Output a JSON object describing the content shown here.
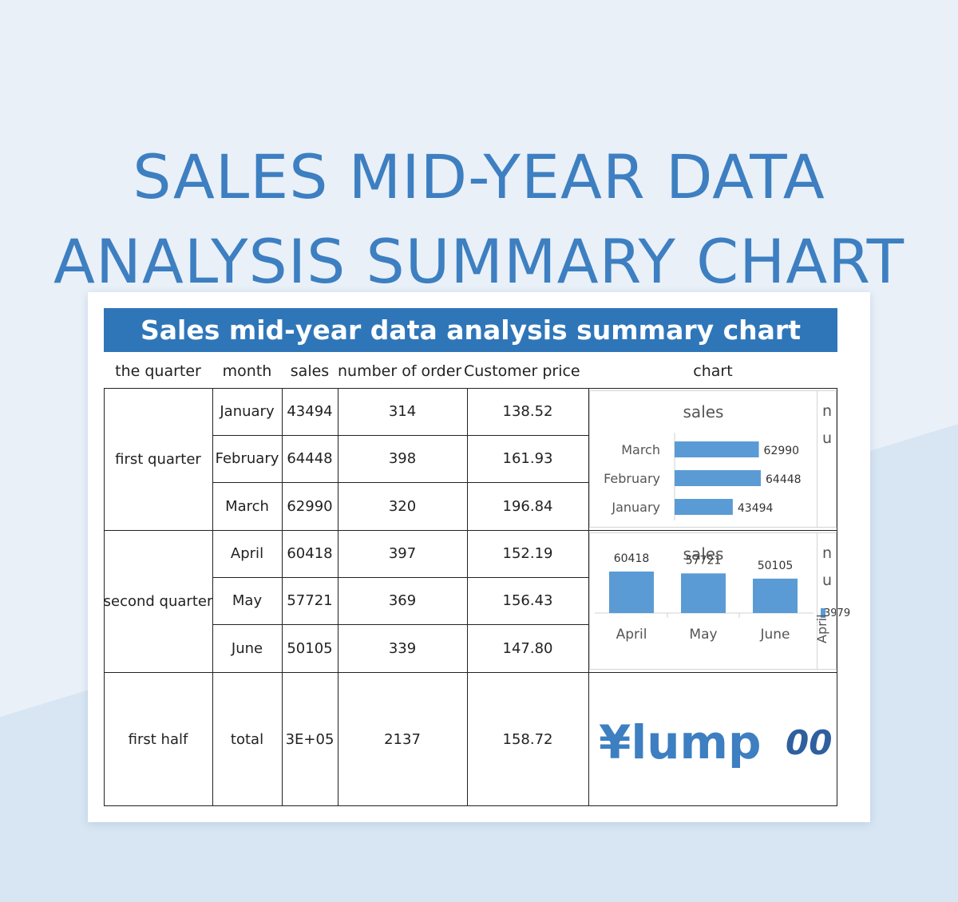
{
  "page_title_lines": [
    "SALES MID-YEAR DATA",
    "ANALYSIS SUMMARY CHART"
  ],
  "banner": "Sales mid-year data analysis summary chart",
  "columns": [
    "the quarter",
    "month",
    "sales",
    "number of order",
    "Customer price",
    "chart"
  ],
  "quarters": [
    {
      "name": "first quarter",
      "rows": [
        {
          "month": "January",
          "sales": "43494",
          "orders": "314",
          "price": "138.52"
        },
        {
          "month": "February",
          "sales": "64448",
          "orders": "398",
          "price": "161.93"
        },
        {
          "month": "March",
          "sales": "62990",
          "orders": "320",
          "price": "196.84"
        }
      ]
    },
    {
      "name": "second quarter",
      "rows": [
        {
          "month": "April",
          "sales": "60418",
          "orders": "397",
          "price": "152.19"
        },
        {
          "month": "May",
          "sales": "57721",
          "orders": "369",
          "price": "156.43"
        },
        {
          "month": "June",
          "sales": "50105",
          "orders": "339",
          "price": "147.80"
        }
      ]
    }
  ],
  "total_row": {
    "period": "first half",
    "label": "total",
    "sales": "3E+05",
    "orders": "2137",
    "price": "158.72"
  },
  "lump_text": "¥lump",
  "lump_right": "00",
  "side_clip": {
    "q1": [
      "n",
      "u"
    ],
    "q2": [
      "n",
      "u"
    ],
    "q2_axis": "April",
    "q2_overlap": "3979"
  },
  "colors": {
    "accent": "#2f76b9",
    "bar": "#5b9bd5",
    "title": "#3d7fc1"
  },
  "chart_data": [
    {
      "type": "bar",
      "orientation": "horizontal",
      "title": "sales",
      "categories": [
        "March",
        "February",
        "January"
      ],
      "values": [
        62990,
        64448,
        43494
      ]
    },
    {
      "type": "bar",
      "orientation": "vertical",
      "title": "sales",
      "categories": [
        "April",
        "May",
        "June"
      ],
      "values": [
        60418,
        57721,
        50105
      ]
    }
  ]
}
